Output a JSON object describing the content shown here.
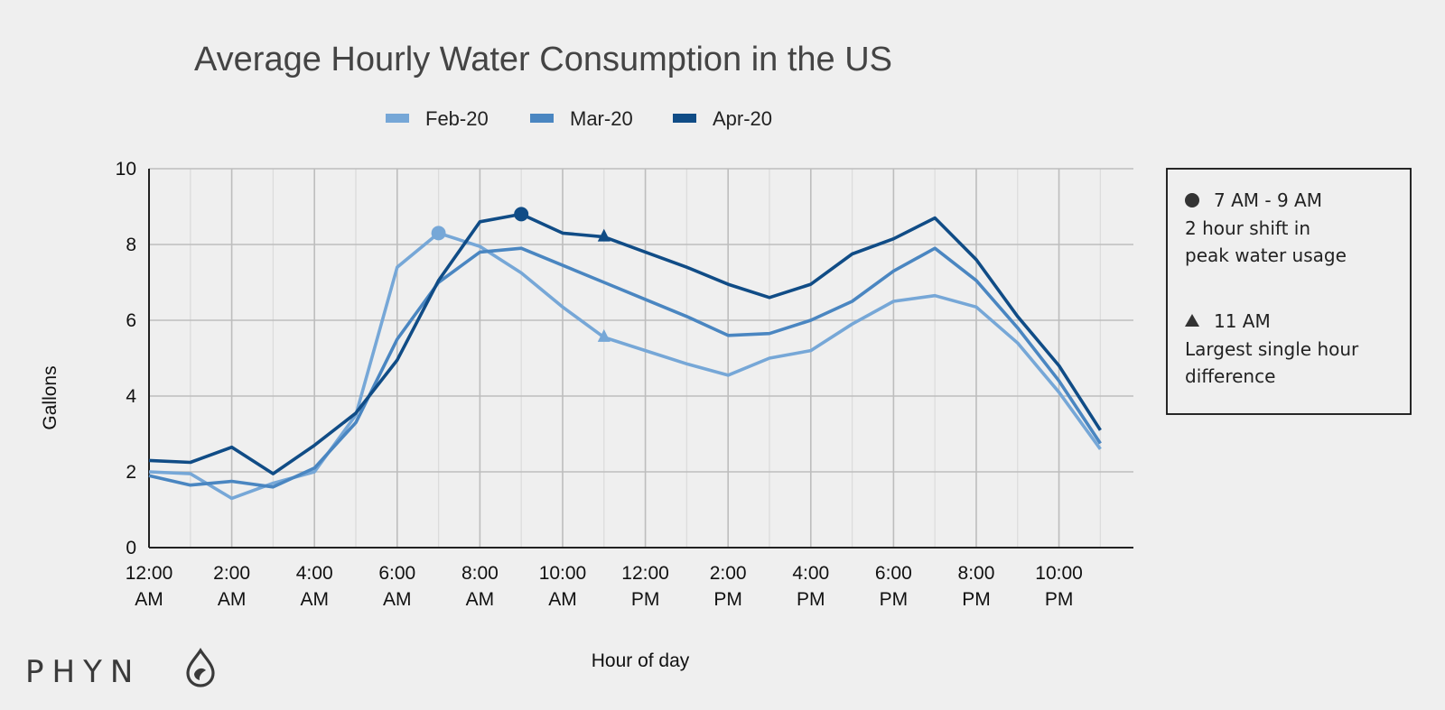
{
  "chart_data": {
    "type": "line",
    "title": "Average Hourly Water Consumption in the US",
    "xlabel": "Hour of day",
    "ylabel": "Gallons",
    "ylim": [
      0,
      10
    ],
    "yticks": [
      0,
      2,
      4,
      6,
      8,
      10
    ],
    "x": [
      0,
      1,
      2,
      3,
      4,
      5,
      6,
      7,
      8,
      9,
      10,
      11,
      12,
      13,
      14,
      15,
      16,
      17,
      18,
      19,
      20,
      21,
      22,
      23
    ],
    "x_tick_labels": [
      {
        "hour": 0,
        "line1": "12:00",
        "line2": "AM"
      },
      {
        "hour": 2,
        "line1": "2:00",
        "line2": "AM"
      },
      {
        "hour": 4,
        "line1": "4:00",
        "line2": "AM"
      },
      {
        "hour": 6,
        "line1": "6:00",
        "line2": "AM"
      },
      {
        "hour": 8,
        "line1": "8:00",
        "line2": "AM"
      },
      {
        "hour": 10,
        "line1": "10:00",
        "line2": "AM"
      },
      {
        "hour": 12,
        "line1": "12:00",
        "line2": "PM"
      },
      {
        "hour": 14,
        "line1": "2:00",
        "line2": "PM"
      },
      {
        "hour": 16,
        "line1": "4:00",
        "line2": "PM"
      },
      {
        "hour": 18,
        "line1": "6:00",
        "line2": "PM"
      },
      {
        "hour": 20,
        "line1": "8:00",
        "line2": "PM"
      },
      {
        "hour": 22,
        "line1": "10:00",
        "line2": "PM"
      }
    ],
    "series": [
      {
        "name": "Feb-20",
        "color": "#76a7d7",
        "values": [
          2.0,
          1.95,
          1.3,
          1.7,
          2.0,
          3.5,
          7.4,
          8.3,
          7.95,
          7.25,
          6.35,
          5.55,
          5.2,
          4.85,
          4.55,
          5.0,
          5.2,
          5.9,
          6.5,
          6.65,
          6.35,
          5.4,
          4.1,
          2.6
        ]
      },
      {
        "name": "Mar-20",
        "color": "#4a86c1",
        "values": [
          1.9,
          1.65,
          1.75,
          1.6,
          2.1,
          3.3,
          5.5,
          7.0,
          7.8,
          7.9,
          7.45,
          7.0,
          6.55,
          6.1,
          5.6,
          5.65,
          6.0,
          6.5,
          7.3,
          7.9,
          7.05,
          5.8,
          4.4,
          2.75
        ]
      },
      {
        "name": "Apr-20",
        "color": "#104c86",
        "values": [
          2.3,
          2.25,
          2.65,
          1.95,
          2.7,
          3.55,
          4.95,
          7.05,
          8.6,
          8.8,
          8.3,
          8.2,
          7.8,
          7.4,
          6.95,
          6.6,
          6.95,
          7.75,
          8.15,
          8.7,
          7.6,
          6.1,
          4.8,
          3.1
        ]
      }
    ],
    "markers": [
      {
        "series": "Feb-20",
        "hour": 7,
        "shape": "circle"
      },
      {
        "series": "Apr-20",
        "hour": 9,
        "shape": "circle"
      },
      {
        "series": "Feb-20",
        "hour": 11,
        "shape": "triangle"
      },
      {
        "series": "Apr-20",
        "hour": 11,
        "shape": "triangle"
      }
    ],
    "annotations": [
      {
        "shape": "circle",
        "heading": "7 AM - 9 AM",
        "lines": [
          "2 hour shift in",
          "peak water usage"
        ]
      },
      {
        "shape": "triangle",
        "heading": "11 AM",
        "lines": [
          "Largest single hour",
          "difference"
        ]
      }
    ],
    "legend_position": "top-center",
    "grid": true
  },
  "brand": {
    "name": "PHYN",
    "icon": "water-drop-icon"
  },
  "colors": {
    "background": "#efefef",
    "grid_major": "#bdbdbd",
    "grid_minor": "#dcdcdc",
    "text": "#222222"
  }
}
